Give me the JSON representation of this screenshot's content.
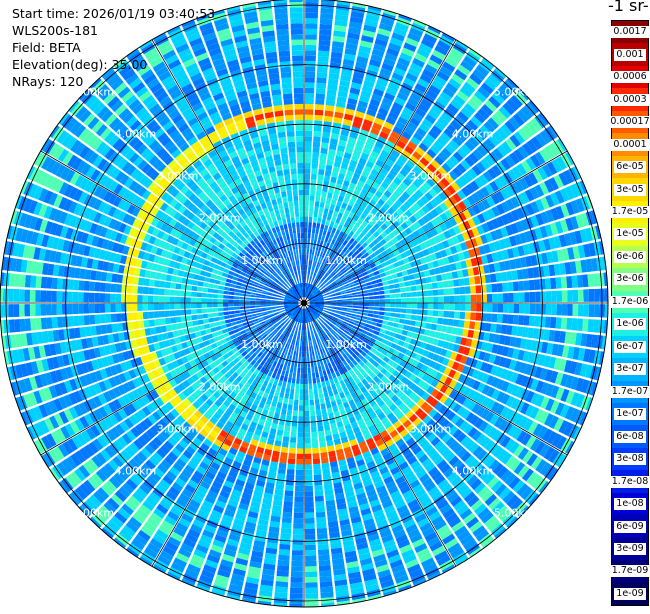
{
  "info": {
    "start_time": "Start time: 2026/01/19 03:40:53",
    "instrument": "WLS200s-181",
    "field": "Field: BETA",
    "elevation": "Elevation(deg): 35.00",
    "nrays": "NRays: 120"
  },
  "chart_data": {
    "type": "heatmap",
    "projection": "polar-ppi",
    "title": "",
    "colorbar_title": "-1 sr-",
    "range_ring_labels": [
      "1.00km",
      "2.00km",
      "3.00km",
      "4.00km",
      "5.00km"
    ],
    "rings_km": [
      1,
      2,
      3,
      4,
      5
    ],
    "max_range_km": 5.1,
    "nrays": 120,
    "colorbar": {
      "labels": [
        "0.0017",
        "0.001",
        "0.0006",
        "0.0003",
        "0.00017",
        "0.0001",
        "6e-05",
        "3e-05",
        "1.7e-05",
        "1e-05",
        "6e-06",
        "3e-06",
        "1.7e-06",
        "1e-06",
        "6e-07",
        "3e-07",
        "1.7e-07",
        "1e-07",
        "6e-08",
        "3e-08",
        "1.7e-08",
        "1e-08",
        "6e-09",
        "3e-09",
        "1.7e-09",
        "1e-09"
      ],
      "colors": [
        "#8b0000",
        "#b80000",
        "#e10000",
        "#ff2800",
        "#ff5a00",
        "#ff8c00",
        "#ffb400",
        "#ffd700",
        "#fff000",
        "#e6ff1e",
        "#b4ff50",
        "#82ff82",
        "#50ffb4",
        "#1ef0e6",
        "#00d2ff",
        "#00b4ff",
        "#0096ff",
        "#0078ff",
        "#005aff",
        "#003cff",
        "#001ee6",
        "#0000d2",
        "#0000b4",
        "#000096",
        "#000078",
        "#00005a"
      ]
    },
    "layer_ring_km": [
      2.55,
      3.15
    ],
    "values_description_levels": {
      "background": "3e-08",
      "near_layer": "1.7e-06"
    }
  }
}
